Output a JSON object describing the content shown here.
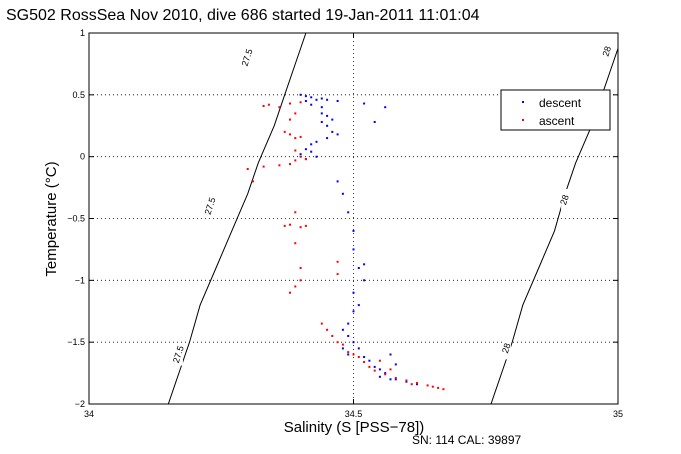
{
  "chart_data": {
    "type": "scatter",
    "title": "SG502 RossSea Nov 2010, dive 686 started 19-Jan-2011 11:01:04",
    "xlabel": "Salinity (S [PSS−78])",
    "ylabel": "Temperature (°C)",
    "xlim": [
      34,
      35
    ],
    "ylim": [
      -2,
      1
    ],
    "x_ticks": [
      34,
      34.5,
      35
    ],
    "x_tick_labels": [
      "34",
      "34.5",
      "35"
    ],
    "y_ticks": [
      -2,
      -1.5,
      -1,
      -0.5,
      0,
      0.5,
      1
    ],
    "y_tick_labels": [
      "−2",
      "−1.5",
      "−1",
      "−0.5",
      "0",
      "0.5",
      "1"
    ],
    "grid": "dotted at x=34.5 and y=0.5, 0, -0.5, -1, -1.5",
    "legend_position": "top-right",
    "footer": "SN: 114  CAL: 39897",
    "contours": [
      {
        "label": "27.5",
        "points": [
          [
            34.15,
            -2
          ],
          [
            34.17,
            -1.75
          ],
          [
            34.19,
            -1.5
          ],
          [
            34.21,
            -1.2
          ],
          [
            34.24,
            -0.9
          ],
          [
            34.27,
            -0.6
          ],
          [
            34.3,
            -0.3
          ],
          [
            34.32,
            -0.05
          ],
          [
            34.35,
            0.25
          ],
          [
            34.37,
            0.5
          ],
          [
            34.39,
            0.75
          ],
          [
            34.41,
            1
          ]
        ],
        "label_points": [
          [
            34.17,
            -1.6
          ],
          [
            34.23,
            -0.4
          ],
          [
            34.3,
            0.8
          ]
        ]
      },
      {
        "label": "28",
        "points": [
          [
            34.76,
            -2
          ],
          [
            34.78,
            -1.75
          ],
          [
            34.8,
            -1.5
          ],
          [
            34.82,
            -1.2
          ],
          [
            34.85,
            -0.9
          ],
          [
            34.88,
            -0.6
          ],
          [
            34.9,
            -0.3
          ],
          [
            34.92,
            -0.05
          ],
          [
            34.95,
            0.25
          ],
          [
            34.97,
            0.5
          ],
          [
            34.99,
            0.75
          ],
          [
            35.01,
            1
          ]
        ],
        "label_points": [
          [
            34.79,
            -1.55
          ],
          [
            34.9,
            -0.35
          ],
          [
            34.98,
            0.85
          ]
        ]
      }
    ],
    "series": [
      {
        "name": "descent",
        "color": "#0000ff",
        "points": [
          [
            34.4,
            0.5
          ],
          [
            34.41,
            0.49
          ],
          [
            34.42,
            0.48
          ],
          [
            34.41,
            0.45
          ],
          [
            34.43,
            0.46
          ],
          [
            34.44,
            0.47
          ],
          [
            34.45,
            0.46
          ],
          [
            34.47,
            0.45
          ],
          [
            34.42,
            0.42
          ],
          [
            34.44,
            0.4
          ],
          [
            34.44,
            0.35
          ],
          [
            34.45,
            0.33
          ],
          [
            34.46,
            0.3
          ],
          [
            34.44,
            0.28
          ],
          [
            34.45,
            0.25
          ],
          [
            34.46,
            0.2
          ],
          [
            34.47,
            0.18
          ],
          [
            34.45,
            0.15
          ],
          [
            34.43,
            0.12
          ],
          [
            34.42,
            0.1
          ],
          [
            34.41,
            0.06
          ],
          [
            34.42,
            0.04
          ],
          [
            34.4,
            0.02
          ],
          [
            34.41,
            -0.02
          ],
          [
            34.43,
            0.0
          ],
          [
            34.52,
            0.43
          ],
          [
            34.56,
            0.4
          ],
          [
            34.54,
            0.28
          ],
          [
            34.47,
            -0.2
          ],
          [
            34.48,
            -0.3
          ],
          [
            34.49,
            -0.45
          ],
          [
            34.5,
            -0.6
          ],
          [
            34.5,
            -0.75
          ],
          [
            34.51,
            -0.9
          ],
          [
            34.52,
            -0.87
          ],
          [
            34.52,
            -1.0
          ],
          [
            34.5,
            -1.1
          ],
          [
            34.51,
            -1.2
          ],
          [
            34.5,
            -1.25
          ],
          [
            34.49,
            -1.35
          ],
          [
            34.48,
            -1.4
          ],
          [
            34.49,
            -1.45
          ],
          [
            34.5,
            -1.5
          ],
          [
            34.48,
            -1.55
          ],
          [
            34.51,
            -1.55
          ],
          [
            34.49,
            -1.6
          ],
          [
            34.52,
            -1.62
          ],
          [
            34.53,
            -1.65
          ],
          [
            34.54,
            -1.7
          ],
          [
            34.55,
            -1.72
          ],
          [
            34.56,
            -1.75
          ],
          [
            34.55,
            -1.78
          ],
          [
            34.57,
            -1.8
          ],
          [
            34.58,
            -1.8
          ],
          [
            34.6,
            -1.82
          ],
          [
            34.62,
            -1.84
          ],
          [
            34.57,
            -1.6
          ],
          [
            34.58,
            -1.68
          ]
        ]
      },
      {
        "name": "ascent",
        "color": "#ff0000",
        "points": [
          [
            34.33,
            0.41
          ],
          [
            34.34,
            0.42
          ],
          [
            34.36,
            0.4
          ],
          [
            34.38,
            0.43
          ],
          [
            34.4,
            0.44
          ],
          [
            34.39,
            0.35
          ],
          [
            34.38,
            0.3
          ],
          [
            34.37,
            0.2
          ],
          [
            34.38,
            0.18
          ],
          [
            34.39,
            0.15
          ],
          [
            34.4,
            0.16
          ],
          [
            34.39,
            0.05
          ],
          [
            34.4,
            0.0
          ],
          [
            34.39,
            -0.03
          ],
          [
            34.38,
            -0.06
          ],
          [
            34.36,
            -0.07
          ],
          [
            34.33,
            -0.08
          ],
          [
            34.3,
            -0.1
          ],
          [
            34.31,
            -0.2
          ],
          [
            34.41,
            -0.02
          ],
          [
            34.39,
            -0.45
          ],
          [
            34.38,
            -0.55
          ],
          [
            34.37,
            -0.56
          ],
          [
            34.4,
            -0.57
          ],
          [
            34.41,
            -0.56
          ],
          [
            34.39,
            -0.7
          ],
          [
            34.4,
            -0.9
          ],
          [
            34.4,
            -1.0
          ],
          [
            34.39,
            -1.05
          ],
          [
            34.38,
            -1.1
          ],
          [
            34.47,
            -0.85
          ],
          [
            34.47,
            -0.95
          ],
          [
            34.44,
            -1.35
          ],
          [
            34.45,
            -1.4
          ],
          [
            34.46,
            -1.45
          ],
          [
            34.47,
            -1.5
          ],
          [
            34.48,
            -1.52
          ],
          [
            34.49,
            -1.58
          ],
          [
            34.5,
            -1.6
          ],
          [
            34.51,
            -1.62
          ],
          [
            34.52,
            -1.66
          ],
          [
            34.53,
            -1.7
          ],
          [
            34.54,
            -1.73
          ],
          [
            34.56,
            -1.76
          ],
          [
            34.58,
            -1.79
          ],
          [
            34.6,
            -1.81
          ],
          [
            34.62,
            -1.83
          ],
          [
            34.64,
            -1.85
          ],
          [
            34.66,
            -1.87
          ],
          [
            34.67,
            -1.88
          ],
          [
            34.65,
            -1.86
          ],
          [
            34.61,
            -1.84
          ],
          [
            34.55,
            -1.65
          ],
          [
            34.57,
            -1.72
          ]
        ]
      }
    ]
  }
}
